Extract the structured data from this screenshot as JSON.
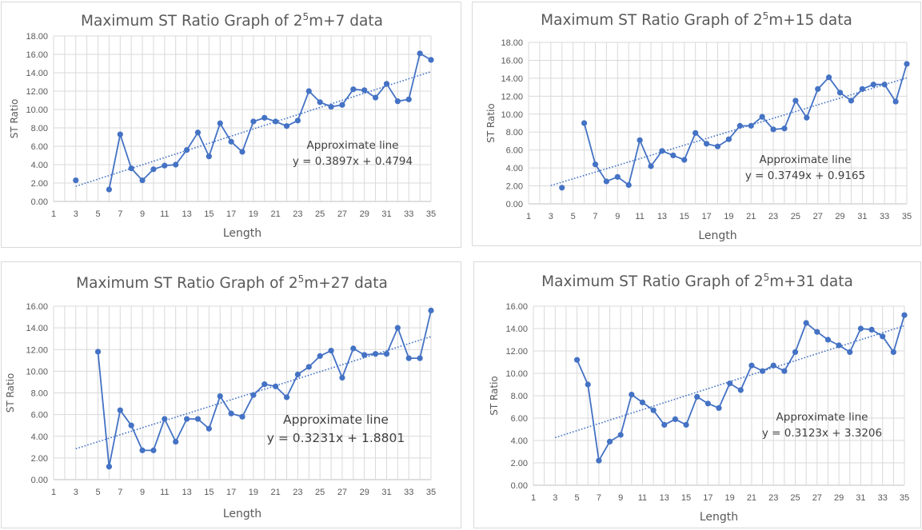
{
  "chart_data": [
    {
      "type": "line",
      "title": {
        "pre": "Maximum ST Ratio Graph of 2",
        "sup": "5",
        "post": "m+7 data"
      },
      "xlabel": "Length",
      "ylabel": "ST Ratio",
      "xlim": [
        1,
        35
      ],
      "ylim": [
        0,
        18
      ],
      "ystep": 2,
      "xticks": [
        1,
        3,
        5,
        7,
        9,
        11,
        13,
        15,
        17,
        19,
        21,
        23,
        25,
        27,
        29,
        31,
        33,
        35
      ],
      "grid": true,
      "series": [
        {
          "color": "#4472c4",
          "isolated": [
            3
          ],
          "x": [
            3,
            6,
            7,
            8,
            9,
            10,
            11,
            12,
            13,
            14,
            15,
            16,
            17,
            18,
            19,
            20,
            21,
            22,
            23,
            24,
            25,
            26,
            27,
            28,
            29,
            30,
            31,
            32,
            33,
            34,
            35
          ],
          "values": [
            2.3,
            1.3,
            7.3,
            3.6,
            2.3,
            3.5,
            3.9,
            4.0,
            5.6,
            7.5,
            4.9,
            8.5,
            6.5,
            5.4,
            8.7,
            9.1,
            8.7,
            8.2,
            8.8,
            12.0,
            10.8,
            10.3,
            10.5,
            12.2,
            12.1,
            11.3,
            12.8,
            10.9,
            11.1,
            16.1,
            15.4
          ]
        }
      ],
      "trendline": {
        "slope": 0.3897,
        "intercept": 0.4794,
        "x_from": 3,
        "x_to": 35
      },
      "annotation": {
        "label": "Approximate line",
        "equation": "y = 0.3897x + 0.4794"
      }
    },
    {
      "type": "line",
      "title": {
        "pre": "Maximum ST Ratio Graph of 2",
        "sup": "5",
        "post": "m+15 data"
      },
      "xlabel": "Length",
      "ylabel": "ST Ratio",
      "xlim": [
        1,
        35
      ],
      "ylim": [
        0,
        18
      ],
      "ystep": 2,
      "xticks": [
        1,
        3,
        5,
        7,
        9,
        11,
        13,
        15,
        17,
        19,
        21,
        23,
        25,
        27,
        29,
        31,
        33,
        35
      ],
      "grid": true,
      "series": [
        {
          "color": "#4472c4",
          "isolated": [
            4
          ],
          "x": [
            4,
            6,
            7,
            8,
            9,
            10,
            11,
            12,
            13,
            14,
            15,
            16,
            17,
            18,
            19,
            20,
            21,
            22,
            23,
            24,
            25,
            26,
            27,
            28,
            29,
            30,
            31,
            32,
            33,
            34,
            35
          ],
          "values": [
            1.8,
            9.0,
            4.4,
            2.5,
            3.0,
            2.1,
            7.1,
            4.2,
            5.9,
            5.4,
            4.9,
            7.9,
            6.7,
            6.4,
            7.2,
            8.7,
            8.7,
            9.7,
            8.3,
            8.4,
            11.5,
            9.6,
            12.8,
            14.1,
            12.4,
            11.5,
            12.8,
            13.3,
            13.3,
            11.4,
            15.6
          ]
        }
      ],
      "trendline": {
        "slope": 0.3749,
        "intercept": 0.9165,
        "x_from": 3,
        "x_to": 35
      },
      "annotation": {
        "label": "Approximate line",
        "equation": "y = 0.3749x + 0.9165"
      }
    },
    {
      "type": "line",
      "title": {
        "pre": "Maximum ST Ratio Graph of 2",
        "sup": "5",
        "post": "m+27 data"
      },
      "xlabel": "Length",
      "ylabel": "ST Ratio",
      "xlim": [
        1,
        35
      ],
      "ylim": [
        0,
        16
      ],
      "ystep": 2,
      "xticks": [
        1,
        3,
        5,
        7,
        9,
        11,
        13,
        15,
        17,
        19,
        21,
        23,
        25,
        27,
        29,
        31,
        33,
        35
      ],
      "grid": true,
      "series": [
        {
          "color": "#4472c4",
          "isolated": [],
          "x": [
            5,
            6,
            7,
            8,
            9,
            10,
            11,
            12,
            13,
            14,
            15,
            16,
            17,
            18,
            19,
            20,
            21,
            22,
            23,
            24,
            25,
            26,
            27,
            28,
            29,
            30,
            31,
            32,
            33,
            34,
            35
          ],
          "values": [
            11.8,
            1.2,
            6.4,
            5.0,
            2.7,
            2.7,
            5.6,
            3.5,
            5.6,
            5.6,
            4.7,
            7.7,
            6.1,
            5.8,
            7.8,
            8.8,
            8.6,
            7.6,
            9.7,
            10.4,
            11.4,
            11.9,
            9.4,
            12.1,
            11.5,
            11.6,
            11.6,
            14.0,
            11.2,
            11.2,
            15.6
          ]
        }
      ],
      "trendline": {
        "slope": 0.3231,
        "intercept": 1.8801,
        "x_from": 3,
        "x_to": 35
      },
      "annotation": {
        "label": "Approximate line",
        "equation": "y = 0.3231x + 1.8801"
      }
    },
    {
      "type": "line",
      "title": {
        "pre": "Maximum ST Ratio Graph of 2",
        "sup": "5",
        "post": "m+31 data"
      },
      "xlabel": "Length",
      "ylabel": "ST Ratio",
      "xlim": [
        1,
        35
      ],
      "ylim": [
        0,
        16
      ],
      "ystep": 2,
      "xticks": [
        1,
        3,
        5,
        7,
        9,
        11,
        13,
        15,
        17,
        19,
        21,
        23,
        25,
        27,
        29,
        31,
        33,
        35
      ],
      "grid": true,
      "series": [
        {
          "color": "#4472c4",
          "isolated": [],
          "x": [
            5,
            6,
            7,
            8,
            9,
            10,
            11,
            12,
            13,
            14,
            15,
            16,
            17,
            18,
            19,
            20,
            21,
            22,
            23,
            24,
            25,
            26,
            27,
            28,
            29,
            30,
            31,
            32,
            33,
            34,
            35
          ],
          "values": [
            11.2,
            9.0,
            2.2,
            3.9,
            4.5,
            8.1,
            7.4,
            6.7,
            5.4,
            5.9,
            5.4,
            7.9,
            7.3,
            6.9,
            9.1,
            8.5,
            10.7,
            10.2,
            10.7,
            10.2,
            11.9,
            14.5,
            13.7,
            13.0,
            12.5,
            11.9,
            14.0,
            13.9,
            13.3,
            11.9,
            15.2
          ]
        }
      ],
      "trendline": {
        "slope": 0.3123,
        "intercept": 3.3206,
        "x_from": 3,
        "x_to": 35
      },
      "annotation": {
        "label": "Approximate line",
        "equation": "y = 0.3123x + 3.3206"
      }
    }
  ]
}
